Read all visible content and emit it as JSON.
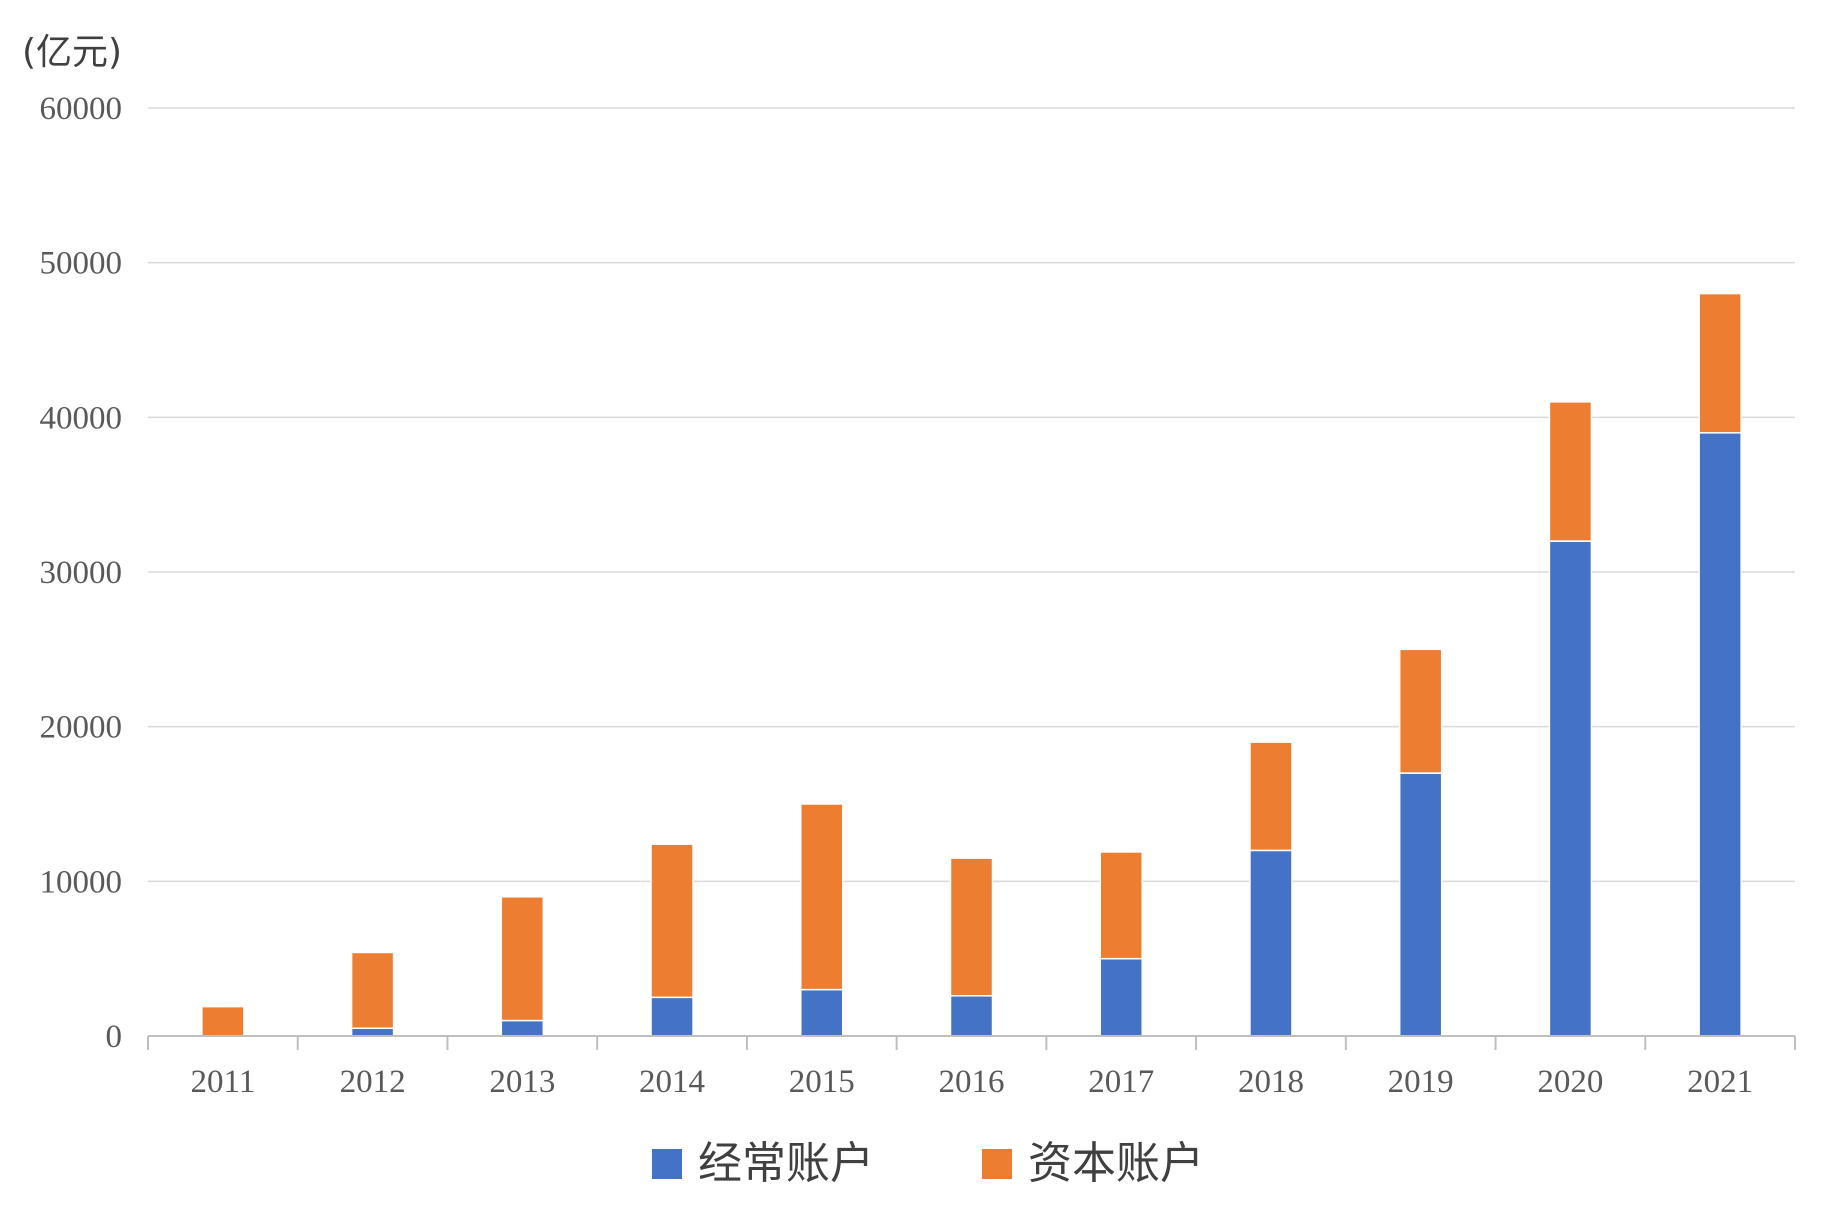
{
  "chart_data": {
    "type": "bar",
    "stacked": true,
    "unit_label": "(亿元)",
    "categories": [
      "2011",
      "2012",
      "2013",
      "2014",
      "2015",
      "2016",
      "2017",
      "2018",
      "2019",
      "2020",
      "2021"
    ],
    "series": [
      {
        "name": "经常账户",
        "color": "#4472c4",
        "values": [
          0,
          500,
          1000,
          2500,
          3000,
          2600,
          5000,
          12000,
          17000,
          32000,
          39000
        ]
      },
      {
        "name": "资本账户",
        "color": "#ed7d31",
        "values": [
          1900,
          4900,
          8000,
          9900,
          12000,
          8900,
          6900,
          7000,
          8000,
          9000,
          9000
        ]
      }
    ],
    "ylim": [
      0,
      60000
    ],
    "yticks": [
      0,
      10000,
      20000,
      30000,
      40000,
      50000,
      60000
    ],
    "grid": true,
    "legend_position": "bottom"
  }
}
